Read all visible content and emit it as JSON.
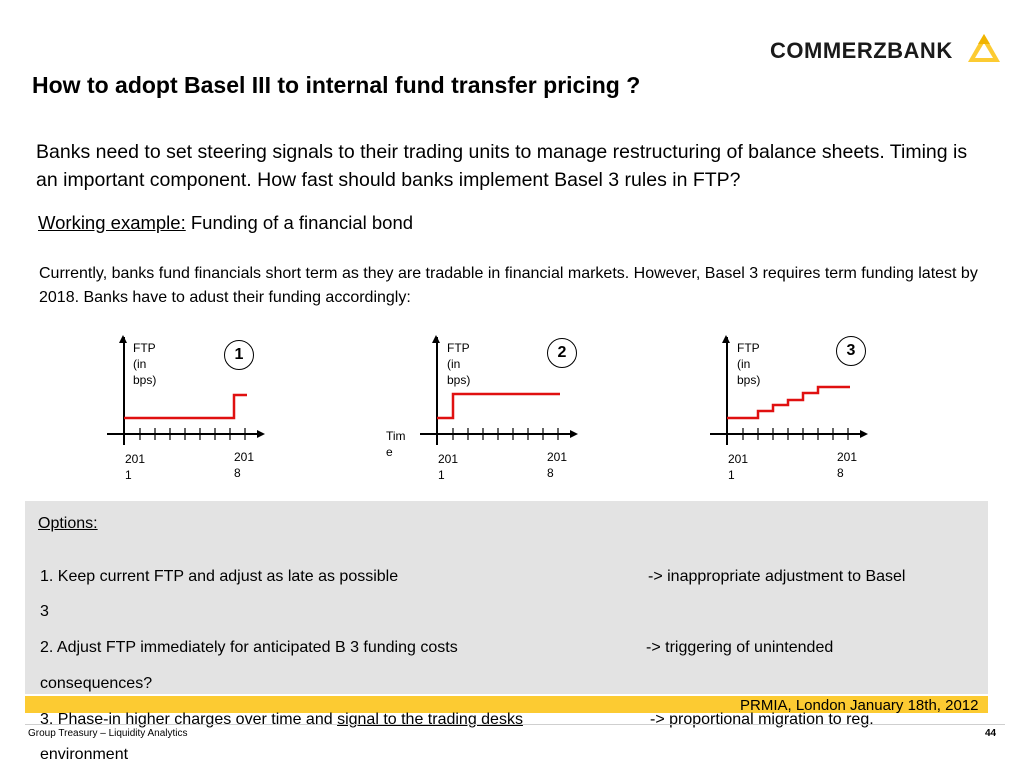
{
  "header": {
    "logo_text": "COMMERZBANK",
    "title": "How to adopt Basel III to internal fund transfer pricing ?"
  },
  "intro": "Banks need to set steering signals to their trading units to manage restructuring of balance sheets. Timing is an important component. How fast should banks implement Basel 3 rules in FTP?",
  "example": {
    "label": "Working example:",
    "text": " Funding of a financial bond"
  },
  "description": "Currently, banks fund financials short term as they are tradable in financial markets. However, Basel 3 requires term funding latest by 2018. Banks have to adust their funding accordingly:",
  "charts": [
    {
      "number": "1",
      "y_label": [
        "FTP",
        "(in",
        "bps)"
      ],
      "x_start": [
        "201",
        "1"
      ],
      "x_end": [
        "201",
        "8"
      ]
    },
    {
      "number": "2",
      "y_label": [
        "FTP",
        "(in",
        "bps)"
      ],
      "x_axis_label": [
        "Tim",
        "e"
      ],
      "x_start": [
        "201",
        "1"
      ],
      "x_end": [
        "201",
        "8"
      ]
    },
    {
      "number": "3",
      "y_label": [
        "FTP",
        "(in",
        "bps)"
      ],
      "x_start": [
        "201",
        "1"
      ],
      "x_end": [
        "201",
        "8"
      ]
    }
  ],
  "options": {
    "heading": "Options:",
    "item1_left": "1. Keep current FTP and adjust as late as possible",
    "item1_right": "->  inappropriate adjustment to Basel",
    "item1_wrap": "3",
    "item2_left": "2. Adjust FTP immediately for anticipated B 3 funding costs",
    "item2_right": "->  triggering of unintended",
    "item2_wrap": "consequences?",
    "item3_prefix": "3. Phase-in higher charges over time and ",
    "item3_underlined": "signal to the trading desks",
    "item3_right": "->  proportional migration to reg.",
    "item3_wrap": "environment"
  },
  "footer": {
    "event": "PRMIA, London January 18th, 2012",
    "left": "Group Treasury – Liquidity Analytics",
    "page": "44"
  },
  "colors": {
    "accent": "#fccb32",
    "line": "#e01010",
    "box": "#e3e3e3"
  }
}
